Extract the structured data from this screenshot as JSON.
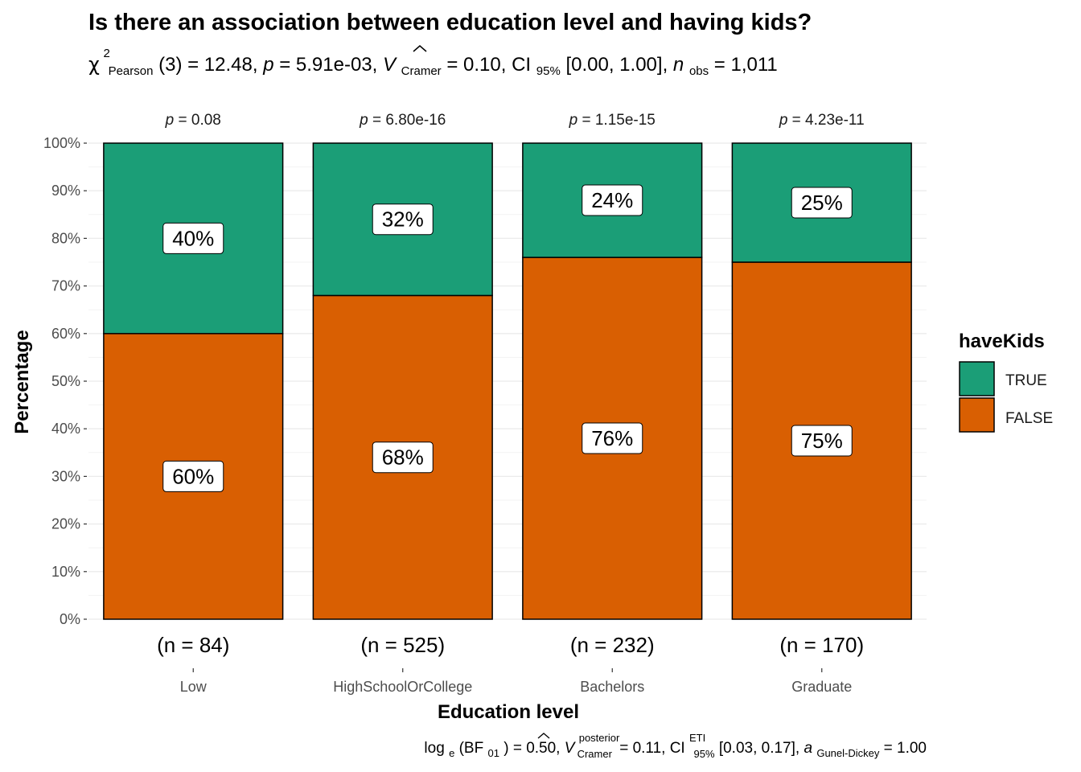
{
  "title": "Is there an association between education level and having kids?",
  "subtitle": {
    "chi_symbol": "χ",
    "chi_sup": "2",
    "chi_sub": "Pearson",
    "stat": "(3) = 12.48, ",
    "p_sym": "p",
    "p_val": " = 5.91e-03, ",
    "v_sym": "V",
    "v_sub": "Cramer",
    "v_val": " = 0.10, CI",
    "ci_sub": "95%",
    "ci_val": " [0.00, 1.00], ",
    "n_sym": "n",
    "n_sub": "obs",
    "n_val": " = 1,011"
  },
  "caption": {
    "log": "log",
    "log_sub": "e",
    "bf": "(BF",
    "bf_sub": "01",
    "bf_val": ") = 0.50, ",
    "v_sym": "V",
    "v_sup": "posterior",
    "v_sub": "Cramer",
    "v_val": " = 0.11, CI",
    "ci_sup": "ETI",
    "ci_sub": "95%",
    "ci_val": " [0.03, 0.17], ",
    "a_sym": "a",
    "a_sub": "Gunel-Dickey",
    "a_val": " = 1.00"
  },
  "chart_data": {
    "type": "bar",
    "stacked": true,
    "percent": true,
    "categories": [
      "Low",
      "HighSchoolOrCollege",
      "Bachelors",
      "Graduate"
    ],
    "series": [
      {
        "name": "FALSE",
        "values": [
          60,
          68,
          76,
          75
        ],
        "labels": [
          "60%",
          "68%",
          "76%",
          "75%"
        ],
        "color": "#D95F02"
      },
      {
        "name": "TRUE",
        "values": [
          40,
          32,
          24,
          25
        ],
        "labels": [
          "40%",
          "32%",
          "24%",
          "25%"
        ],
        "color": "#1B9E77"
      }
    ],
    "counts": [
      "(n = 84)",
      "(n = 525)",
      "(n = 232)",
      "(n = 170)"
    ],
    "p_values": [
      "0.08",
      "6.80e-16",
      "1.15e-15",
      "4.23e-11"
    ],
    "p_prefix": "p",
    "xlabel": "Education level",
    "ylabel": "Percentage",
    "ylim": [
      0,
      100
    ],
    "yticks": [
      "0%",
      "10%",
      "20%",
      "30%",
      "40%",
      "50%",
      "60%",
      "70%",
      "80%",
      "90%",
      "100%"
    ],
    "legend": {
      "title": "haveKids",
      "entries": [
        "TRUE",
        "FALSE"
      ],
      "placement": "right"
    },
    "grid": true
  }
}
